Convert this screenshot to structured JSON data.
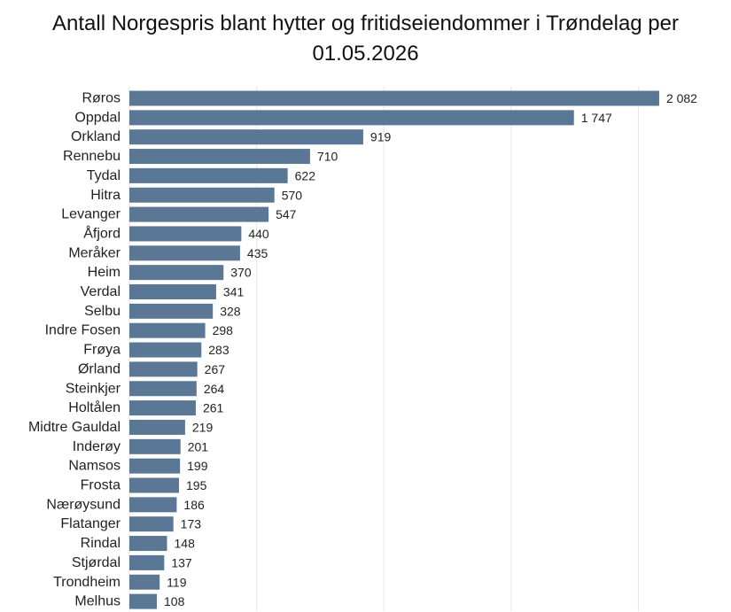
{
  "chart_data": {
    "type": "bar",
    "orientation": "horizontal",
    "title_lines": [
      "Antall Norgespris blant hytter og fritidseiendommer i Trøndelag per",
      "01.05.2026"
    ],
    "categories": [
      "Røros",
      "Oppdal",
      "Orkland",
      "Rennebu",
      "Tydal",
      "Hitra",
      "Levanger",
      "Åfjord",
      "Meråker",
      "Heim",
      "Verdal",
      "Selbu",
      "Indre Fosen",
      "Frøya",
      "Ørland",
      "Steinkjer",
      "Holtålen",
      "Midtre Gauldal",
      "Inderøy",
      "Namsos",
      "Frosta",
      "Nærøysund",
      "Flatanger",
      "Rindal",
      "Stjørdal",
      "Trondheim",
      "Melhus"
    ],
    "values": [
      2082,
      1747,
      919,
      710,
      622,
      570,
      547,
      440,
      435,
      370,
      341,
      328,
      298,
      283,
      267,
      264,
      261,
      219,
      201,
      199,
      195,
      186,
      173,
      148,
      137,
      119,
      108
    ],
    "value_labels": [
      "2 082",
      "1 747",
      "919",
      "710",
      "622",
      "570",
      "547",
      "440",
      "435",
      "370",
      "341",
      "328",
      "298",
      "283",
      "267",
      "264",
      "261",
      "219",
      "201",
      "199",
      "195",
      "186",
      "173",
      "148",
      "137",
      "119",
      "108"
    ],
    "xlim": [
      0,
      2500
    ],
    "grid": true,
    "bar_color": "#5a7896",
    "grid_color": "#e6e6e6"
  }
}
